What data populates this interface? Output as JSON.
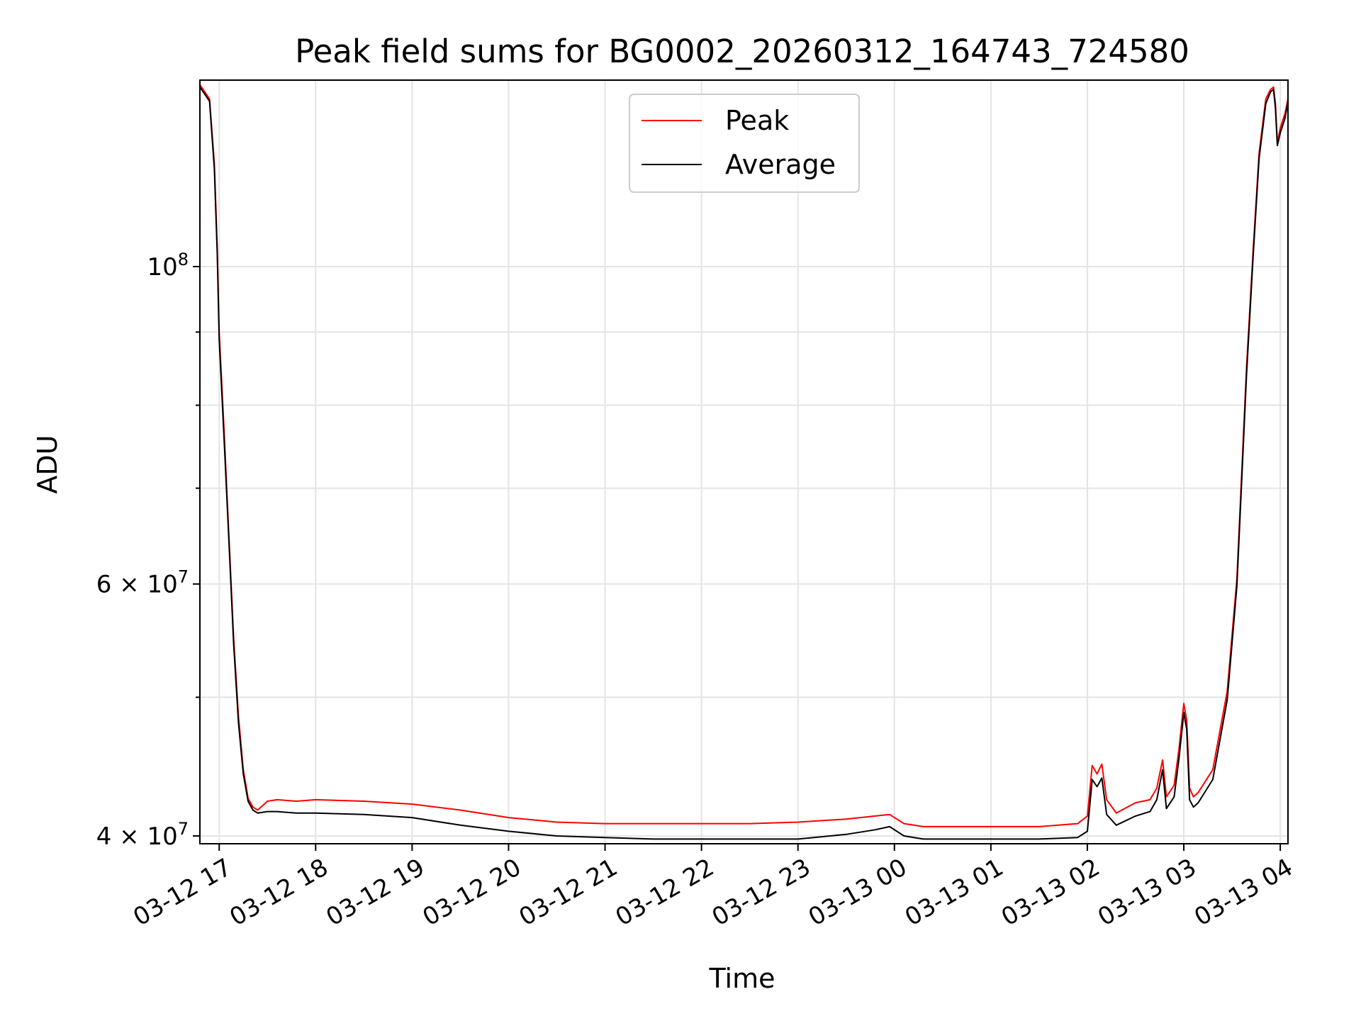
{
  "chart_data": {
    "type": "line",
    "title": "Peak field sums for BG0002_20260312_164743_724580",
    "xlabel": "Time",
    "ylabel": "ADU",
    "yscale": "log",
    "ylim": [
      39500000,
      135000000
    ],
    "xlim_hours": [
      16.8,
      28.08
    ],
    "grid": true,
    "legend_position": "top-center",
    "x_ticks": [
      {
        "h": 17,
        "label": "03-12 17"
      },
      {
        "h": 18,
        "label": "03-12 18"
      },
      {
        "h": 19,
        "label": "03-12 19"
      },
      {
        "h": 20,
        "label": "03-12 20"
      },
      {
        "h": 21,
        "label": "03-12 21"
      },
      {
        "h": 22,
        "label": "03-12 22"
      },
      {
        "h": 23,
        "label": "03-12 23"
      },
      {
        "h": 24,
        "label": "03-13 00"
      },
      {
        "h": 25,
        "label": "03-13 01"
      },
      {
        "h": 26,
        "label": "03-13 02"
      },
      {
        "h": 27,
        "label": "03-13 03"
      },
      {
        "h": 28,
        "label": "03-13 04"
      }
    ],
    "y_ticks": [
      {
        "v": 100000000,
        "base": "10",
        "exp": "8"
      },
      {
        "v": 60000000,
        "base": "6 × 10",
        "exp": "7"
      },
      {
        "v": 40000000,
        "base": "4 × 10",
        "exp": "7"
      }
    ],
    "y_minor_ticks": [
      50000000,
      70000000,
      80000000,
      90000000
    ],
    "series": [
      {
        "name": "Peak",
        "color": "#ff0000",
        "x": [
          16.8,
          16.9,
          16.95,
          16.98,
          17.0,
          17.05,
          17.1,
          17.15,
          17.2,
          17.25,
          17.3,
          17.35,
          17.4,
          17.5,
          17.6,
          17.8,
          18.0,
          18.5,
          19.0,
          19.5,
          20.0,
          20.5,
          21.0,
          21.5,
          22.0,
          22.5,
          23.0,
          23.5,
          23.8,
          23.95,
          24.1,
          24.3,
          24.5,
          25.0,
          25.5,
          25.9,
          26.0,
          26.05,
          26.1,
          26.15,
          26.2,
          26.3,
          26.5,
          26.65,
          26.72,
          26.78,
          26.82,
          26.9,
          26.95,
          27.0,
          27.03,
          27.06,
          27.1,
          27.15,
          27.3,
          27.45,
          27.55,
          27.65,
          27.72,
          27.78,
          27.85,
          27.9,
          27.93,
          27.95,
          27.97,
          28.0,
          28.05,
          28.08
        ],
        "values": [
          134000000,
          131000000,
          118000000,
          103000000,
          90000000,
          77000000,
          65000000,
          55000000,
          48500000,
          44500000,
          42500000,
          41900000,
          41700000,
          42300000,
          42400000,
          42300000,
          42400000,
          42300000,
          42100000,
          41700000,
          41200000,
          40900000,
          40800000,
          40800000,
          40800000,
          40800000,
          40900000,
          41100000,
          41300000,
          41400000,
          40800000,
          40600000,
          40600000,
          40600000,
          40600000,
          40800000,
          41300000,
          44800000,
          44200000,
          44900000,
          42400000,
          41500000,
          42200000,
          42400000,
          43200000,
          45200000,
          42600000,
          43400000,
          46000000,
          49500000,
          48200000,
          43200000,
          42600000,
          42900000,
          44500000,
          50500000,
          60500000,
          85000000,
          103000000,
          120000000,
          131000000,
          133000000,
          133500000,
          130000000,
          122000000,
          125000000,
          128000000,
          131000000
        ]
      },
      {
        "name": "Average",
        "color": "#000000",
        "x": [
          16.8,
          16.9,
          16.95,
          16.98,
          17.0,
          17.05,
          17.1,
          17.15,
          17.2,
          17.25,
          17.3,
          17.35,
          17.4,
          17.5,
          17.6,
          17.8,
          18.0,
          18.5,
          19.0,
          19.5,
          20.0,
          20.5,
          21.0,
          21.5,
          22.0,
          22.5,
          23.0,
          23.5,
          23.8,
          23.95,
          24.1,
          24.3,
          24.5,
          25.0,
          25.5,
          25.9,
          26.0,
          26.05,
          26.1,
          26.15,
          26.2,
          26.3,
          26.5,
          26.65,
          26.72,
          26.78,
          26.82,
          26.9,
          26.95,
          27.0,
          27.03,
          27.06,
          27.1,
          27.15,
          27.3,
          27.45,
          27.55,
          27.65,
          27.72,
          27.78,
          27.85,
          27.9,
          27.93,
          27.95,
          27.97,
          28.0,
          28.05,
          28.08
        ],
        "values": [
          133500000,
          130500000,
          117000000,
          102000000,
          89000000,
          76000000,
          64500000,
          54500000,
          48000000,
          44200000,
          42300000,
          41700000,
          41500000,
          41600000,
          41600000,
          41500000,
          41500000,
          41400000,
          41200000,
          40700000,
          40300000,
          40000000,
          39900000,
          39800000,
          39800000,
          39800000,
          39800000,
          40100000,
          40400000,
          40600000,
          40000000,
          39800000,
          39800000,
          39800000,
          39800000,
          39900000,
          40300000,
          43800000,
          43300000,
          43900000,
          41400000,
          40700000,
          41300000,
          41600000,
          42400000,
          44500000,
          41800000,
          42600000,
          45300000,
          48800000,
          47500000,
          42400000,
          41900000,
          42200000,
          43800000,
          49800000,
          59800000,
          84000000,
          102000000,
          119000000,
          130000000,
          132500000,
          133000000,
          129000000,
          121500000,
          124000000,
          127000000,
          130500000
        ]
      }
    ]
  }
}
